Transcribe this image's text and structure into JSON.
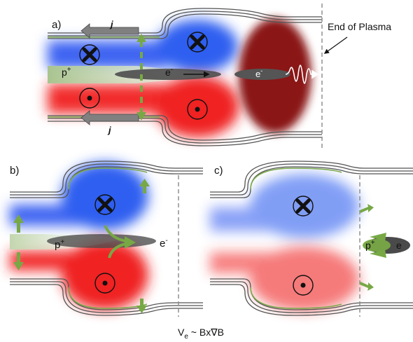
{
  "panels": {
    "a": {
      "label": "a)",
      "current_top": "j",
      "current_bottom": "j",
      "proton": "p",
      "proton_sup": "+",
      "electron_center": "e",
      "electron_center_sup": "-",
      "electron_right": "e",
      "electron_right_sup": "-",
      "end_of_plasma": "End of Plasma"
    },
    "b": {
      "label": "b)",
      "proton": "p",
      "proton_sup": "+",
      "electron": "e",
      "electron_sup": "-"
    },
    "c": {
      "label": "c)",
      "proton": "p",
      "proton_sup": "+",
      "electron": "e"
    }
  },
  "formula": {
    "v": "V",
    "v_sub": "e",
    "rest": " ~ Bx∇B"
  },
  "colors": {
    "field_in_blue": "#2f5ff0",
    "field_out_red": "#f02424",
    "em_pulse_darkred": "#8a1818",
    "flow_arrow_green": "#77a845",
    "wall_green": "#7aa84a"
  },
  "icons": {
    "into_page": "circled-x-icon",
    "out_of_page": "circled-dot-icon"
  }
}
